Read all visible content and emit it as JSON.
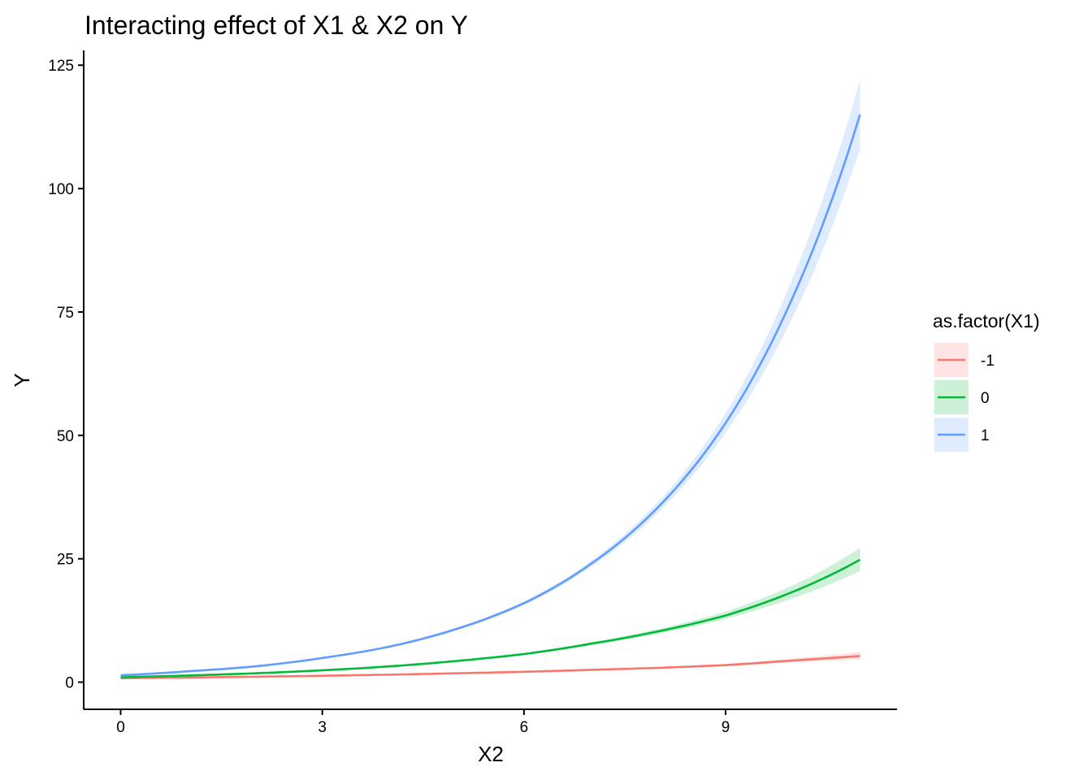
{
  "chart_data": {
    "type": "line",
    "title": "Interacting effect of X1 & X2 on Y",
    "xlabel": "X2",
    "ylabel": "Y",
    "xlim": [
      -0.55,
      11.55
    ],
    "ylim": [
      -5.5,
      128
    ],
    "x_ticks": [
      0,
      3,
      6,
      9
    ],
    "y_ticks": [
      0,
      25,
      50,
      75,
      100,
      125
    ],
    "grid": false,
    "legend": {
      "title": "as.factor(X1)",
      "placement": "right"
    },
    "series": [
      {
        "name": "-1",
        "color": "#F8766D",
        "x": [
          0,
          1,
          2,
          3,
          4,
          5,
          6,
          7,
          8,
          9,
          10,
          11
        ],
        "values": [
          0.8,
          0.94,
          1.1,
          1.3,
          1.52,
          1.8,
          2.1,
          2.5,
          2.9,
          3.45,
          4.4,
          5.3
        ],
        "lower": [
          0.7,
          0.84,
          1.0,
          1.2,
          1.42,
          1.68,
          1.97,
          2.33,
          2.72,
          3.2,
          4.0,
          4.6
        ],
        "upper": [
          0.9,
          1.04,
          1.2,
          1.4,
          1.62,
          1.92,
          2.23,
          2.67,
          3.08,
          3.7,
          4.8,
          6.1
        ]
      },
      {
        "name": "0",
        "color": "#00BA38",
        "x": [
          0,
          1,
          2,
          3,
          4,
          5,
          6,
          7,
          8,
          9,
          10,
          11
        ],
        "values": [
          1.0,
          1.35,
          1.8,
          2.4,
          3.2,
          4.3,
          5.7,
          7.8,
          10.3,
          13.5,
          18.3,
          24.8
        ],
        "lower": [
          0.9,
          1.25,
          1.7,
          2.3,
          3.1,
          4.15,
          5.5,
          7.5,
          9.8,
          12.8,
          17.0,
          22.5
        ],
        "upper": [
          1.1,
          1.45,
          1.9,
          2.5,
          3.3,
          4.45,
          5.9,
          8.1,
          10.8,
          14.3,
          19.6,
          27.2
        ]
      },
      {
        "name": "1",
        "color": "#619CFF",
        "x": [
          0,
          1,
          2,
          3,
          4,
          5,
          6,
          7,
          8,
          9,
          10,
          11
        ],
        "values": [
          1.4,
          2.2,
          3.2,
          4.9,
          7.2,
          10.8,
          16.0,
          24.0,
          35.5,
          52.5,
          78.0,
          115.0
        ],
        "lower": [
          1.2,
          2.0,
          3.0,
          4.7,
          7.0,
          10.5,
          15.6,
          23.4,
          34.4,
          50.5,
          74.0,
          108.0
        ],
        "upper": [
          1.6,
          2.4,
          3.4,
          5.1,
          7.4,
          11.1,
          16.4,
          24.6,
          36.6,
          54.5,
          82.0,
          122.0
        ]
      }
    ]
  }
}
